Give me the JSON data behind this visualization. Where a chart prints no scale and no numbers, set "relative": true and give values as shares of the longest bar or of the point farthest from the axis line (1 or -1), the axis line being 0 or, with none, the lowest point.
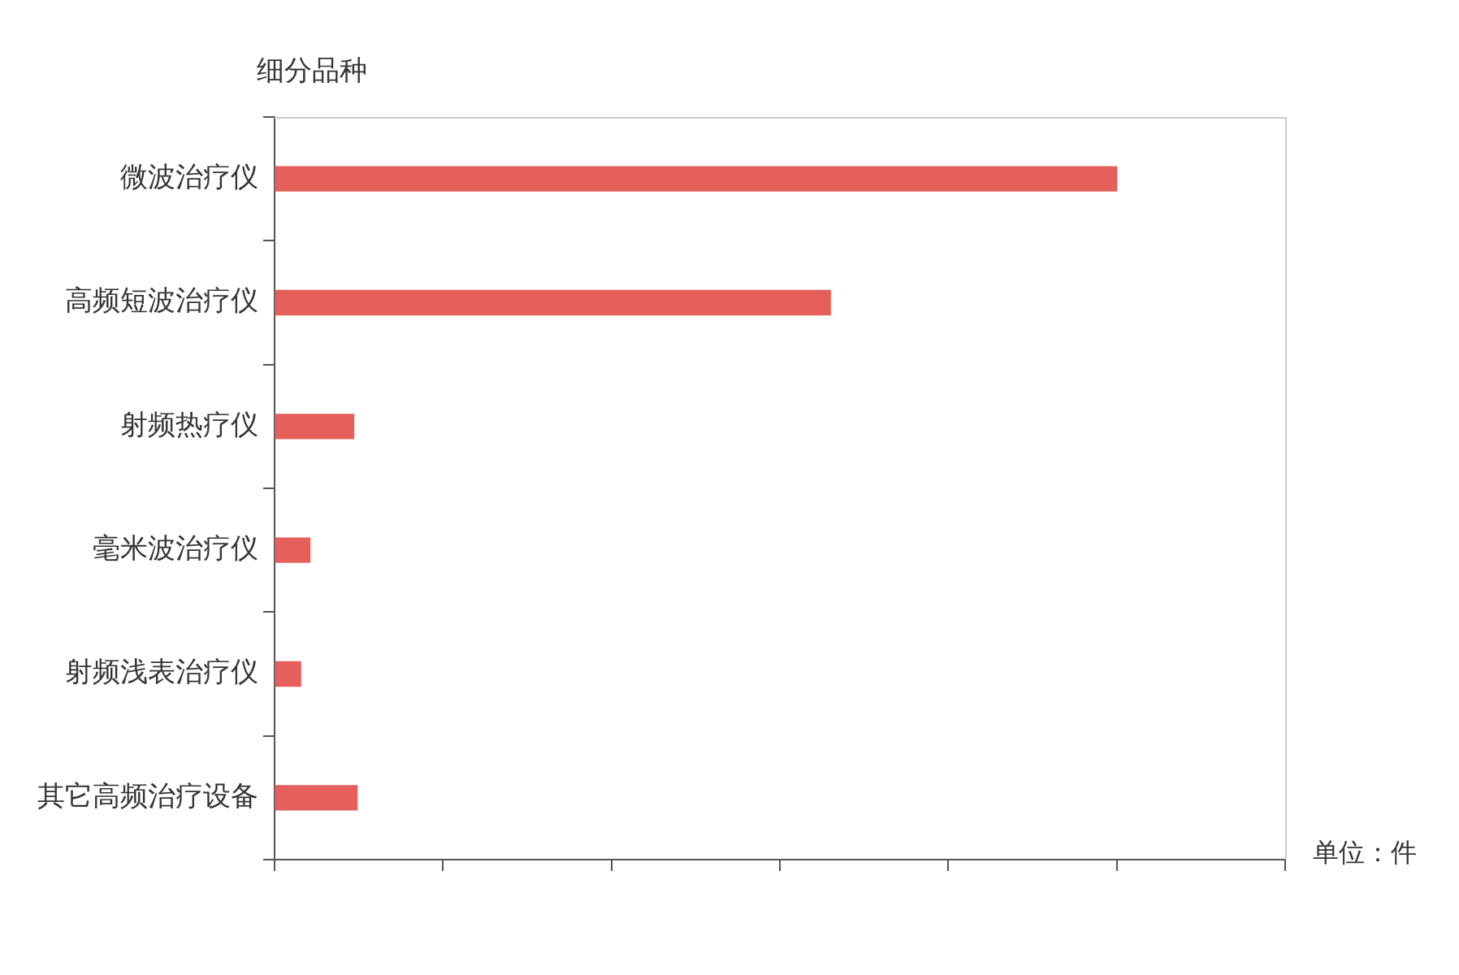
{
  "chart_data": {
    "type": "bar",
    "orientation": "horizontal",
    "relative": true,
    "ylabel": "细分品种",
    "annotations": [
      "单位：件"
    ],
    "categories": [
      "微波治疗仪",
      "高频短波治疗仪",
      "射频热疗仪",
      "毫米波治疗仪",
      "射频浅表治疗仪",
      "其它高频治疗设备"
    ],
    "values": [
      1,
      0.66,
      0.094,
      0.042,
      0.031,
      0.098
    ],
    "color": "#e5605a",
    "legend": false
  }
}
